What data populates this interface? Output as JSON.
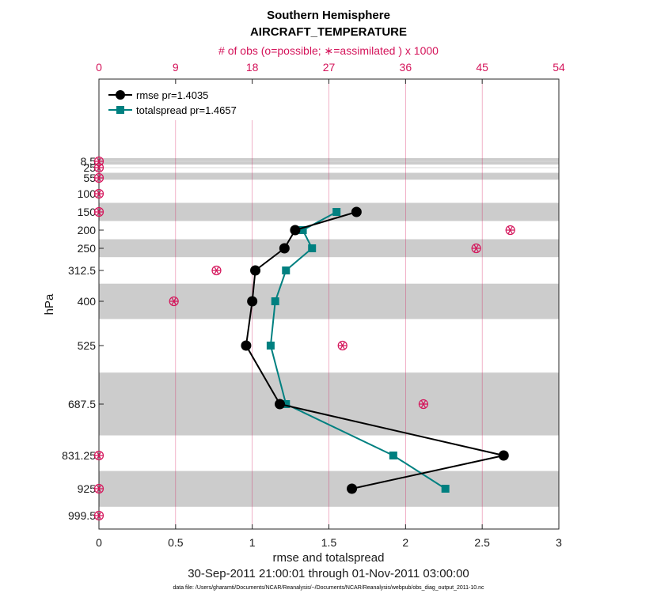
{
  "chart_data": {
    "type": "line",
    "title": "Southern Hemisphere",
    "subtitle": "AIRCRAFT_TEMPERATURE",
    "top_axis_label": "# of obs (o=possible; ∗=assimilated ) x 1000",
    "xlabel": "rmse and totalspread",
    "ylabel": "hPa",
    "date_range": "30-Sep-2011 21:00:01 through 01-Nov-2011 03:00:00",
    "footnote": "data file: /Users/gharamti/Documents/NCAR/Reanalysis/~/Documents/NCAR/Reanalysis/webpub/obs_diag_output_2011-10.nc",
    "xlim": [
      0,
      3
    ],
    "x_ticks": [
      "0",
      "0.5",
      "1",
      "1.5",
      "2",
      "2.5",
      "3"
    ],
    "top_xlim": [
      0,
      54
    ],
    "top_ticks": [
      "0",
      "9",
      "18",
      "27",
      "36",
      "45",
      "54"
    ],
    "levels": [
      8.5,
      25,
      55,
      100,
      150,
      200,
      250,
      312.5,
      400,
      525,
      687.5,
      831.25,
      925,
      999.5
    ],
    "level_labels": [
      "8.5",
      "25",
      "55",
      "100",
      "150",
      "200",
      "250",
      "312.5",
      "400",
      "525",
      "687.5",
      "831.25",
      "925",
      "999.5"
    ],
    "shaded_bands": [
      [
        0,
        17
      ],
      [
        40,
        60
      ],
      [
        125,
        175
      ],
      [
        225,
        275
      ],
      [
        350,
        450
      ],
      [
        600,
        775
      ],
      [
        875,
        975
      ]
    ],
    "grid": true,
    "legend_position": "top-left",
    "series": [
      {
        "name": "rmse",
        "label": "rmse pr=1.4035",
        "color": "#000000",
        "marker": "circle",
        "points": [
          [
            1.68,
            150
          ],
          [
            1.28,
            200
          ],
          [
            1.21,
            250
          ],
          [
            1.02,
            312.5
          ],
          [
            1.0,
            400
          ],
          [
            0.96,
            525
          ],
          [
            1.18,
            687.5
          ],
          [
            2.64,
            831.25
          ],
          [
            1.65,
            925
          ]
        ]
      },
      {
        "name": "totalspread",
        "label": "totalspread pr=1.4657",
        "color": "#008080",
        "marker": "square",
        "points": [
          [
            1.55,
            150
          ],
          [
            1.33,
            200
          ],
          [
            1.39,
            250
          ],
          [
            1.22,
            312.5
          ],
          [
            1.15,
            400
          ],
          [
            1.12,
            525
          ],
          [
            1.22,
            687.5
          ],
          [
            1.92,
            831.25
          ],
          [
            2.26,
            925
          ]
        ]
      }
    ],
    "obs_count_color": "#d4145a",
    "obs_counts": [
      {
        "level": 8.5,
        "possible": 0,
        "assimilated": 0
      },
      {
        "level": 25,
        "possible": 0,
        "assimilated": 0
      },
      {
        "level": 55,
        "possible": 0,
        "assimilated": 0
      },
      {
        "level": 100,
        "possible": 0,
        "assimilated": 0
      },
      {
        "level": 150,
        "possible": 0,
        "assimilated": 0
      },
      {
        "level": 200,
        "possible": 48.3,
        "assimilated": 48.3
      },
      {
        "level": 250,
        "possible": 44.3,
        "assimilated": 44.3
      },
      {
        "level": 312.5,
        "possible": 13.8,
        "assimilated": 13.8
      },
      {
        "level": 400,
        "possible": 8.8,
        "assimilated": 8.8
      },
      {
        "level": 525,
        "possible": 28.6,
        "assimilated": 28.6
      },
      {
        "level": 687.5,
        "possible": 38.1,
        "assimilated": 38.1
      },
      {
        "level": 831.25,
        "possible": 0,
        "assimilated": 0
      },
      {
        "level": 925,
        "possible": 0,
        "assimilated": 0
      },
      {
        "level": 999.5,
        "possible": 0,
        "assimilated": 0
      }
    ]
  }
}
